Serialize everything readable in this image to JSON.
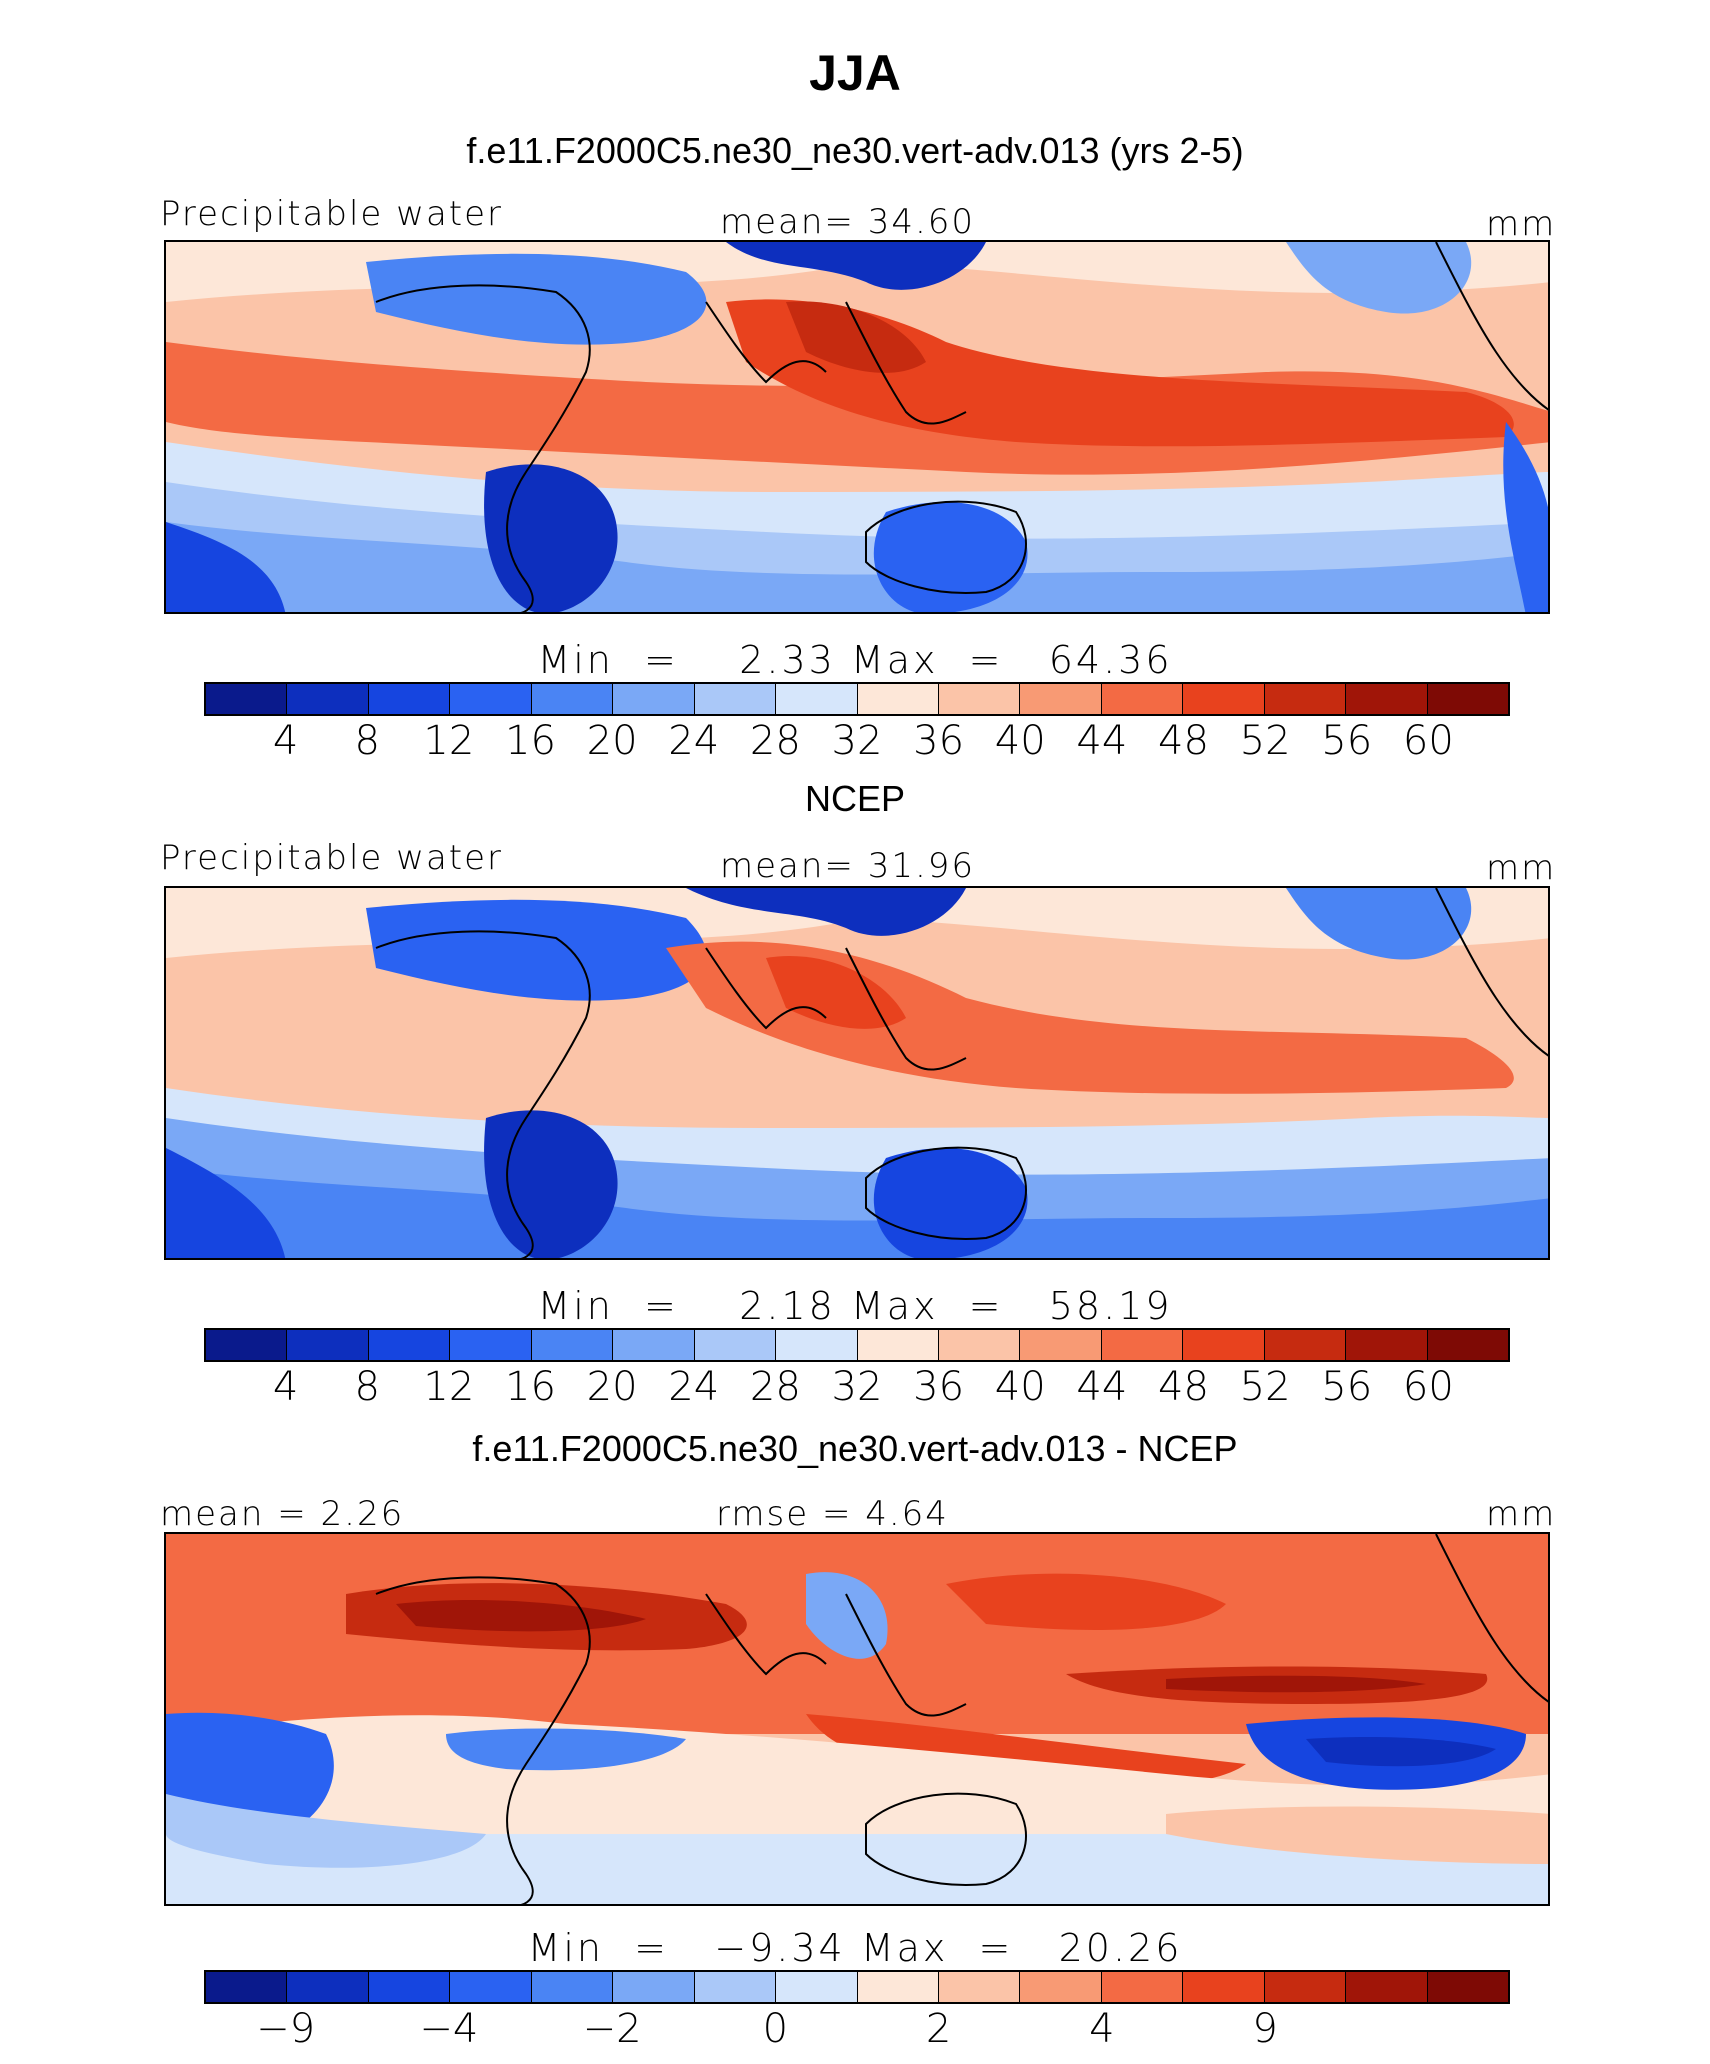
{
  "page": {
    "title": "JJA"
  },
  "chart_data": [
    {
      "type": "heatmap",
      "title": "f.e11.F2000C5.ne30_ne30.vert-adv.013 (yrs 2-5)",
      "left_label": "Precipitable water",
      "center_label": "mean=  34.60",
      "units": "mm",
      "min_label": "Min",
      "min_value": "2.33",
      "max_label": "Max",
      "max_value": "64.36",
      "colorbar_ticks": [
        "4",
        "8",
        "12",
        "16",
        "20",
        "24",
        "28",
        "32",
        "36",
        "40",
        "44",
        "48",
        "52",
        "56",
        "60"
      ],
      "colorbar_colors": [
        "#0a1a8c",
        "#0d2fbe",
        "#1645e0",
        "#2a62f2",
        "#4a84f4",
        "#7aa8f6",
        "#aac8f8",
        "#d6e6fb",
        "#fde7d8",
        "#fbc4a8",
        "#f89a74",
        "#f36a44",
        "#e8421e",
        "#c62b10",
        "#a01508",
        "#7e0a05"
      ],
      "mean": 34.6,
      "min": 2.33,
      "max": 64.36
    },
    {
      "type": "heatmap",
      "title": "NCEP",
      "left_label": "Precipitable water",
      "center_label": "mean=  31.96",
      "units": "mm",
      "min_label": "Min",
      "min_value": "2.18",
      "max_label": "Max",
      "max_value": "58.19",
      "colorbar_ticks": [
        "4",
        "8",
        "12",
        "16",
        "20",
        "24",
        "28",
        "32",
        "36",
        "40",
        "44",
        "48",
        "52",
        "56",
        "60"
      ],
      "colorbar_colors": [
        "#0a1a8c",
        "#0d2fbe",
        "#1645e0",
        "#2a62f2",
        "#4a84f4",
        "#7aa8f6",
        "#aac8f8",
        "#d6e6fb",
        "#fde7d8",
        "#fbc4a8",
        "#f89a74",
        "#f36a44",
        "#e8421e",
        "#c62b10",
        "#a01508",
        "#7e0a05"
      ],
      "mean": 31.96,
      "min": 2.18,
      "max": 58.19
    },
    {
      "type": "heatmap",
      "title": "f.e11.F2000C5.ne30_ne30.vert-adv.013 - NCEP",
      "left_label": "mean =   2.26",
      "center_label": "rmse =   4.64",
      "units": "mm",
      "min_label": "Min",
      "min_value": "−9.34",
      "max_label": "Max",
      "max_value": "20.26",
      "colorbar_ticks": [
        "−9",
        "−4",
        "−2",
        "0",
        "2",
        "4",
        "9"
      ],
      "colorbar_tick_positions": [
        1,
        3,
        5,
        7,
        9,
        11,
        13
      ],
      "colorbar_colors": [
        "#0a1a8c",
        "#0d2fbe",
        "#1645e0",
        "#2a62f2",
        "#4a84f4",
        "#7aa8f6",
        "#aac8f8",
        "#d6e6fb",
        "#fde7d8",
        "#fbc4a8",
        "#f89a74",
        "#f36a44",
        "#e8421e",
        "#c62b10",
        "#a01508",
        "#7e0a05"
      ],
      "mean": 2.26,
      "rmse": 4.64,
      "min": -9.34,
      "max": 20.26
    }
  ]
}
